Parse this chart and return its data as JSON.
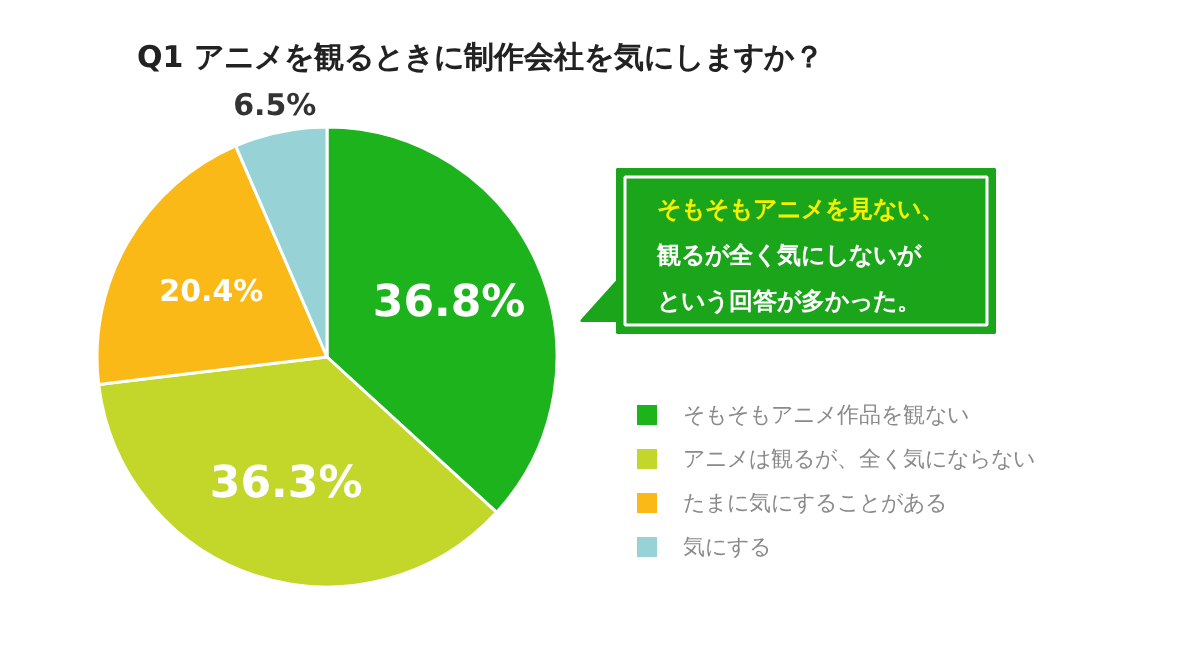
{
  "chart_data": {
    "type": "pie",
    "title": "Q1  アニメを観るときに制作会社を気にしますか？",
    "categories": [
      "そもそもアニメ作品を観ない",
      "アニメは観るが、全く気にならない",
      "たまに気にすることがある",
      "気にする"
    ],
    "values": [
      36.8,
      36.3,
      20.4,
      6.5
    ],
    "colors": [
      "#1db31d",
      "#c3d62a",
      "#fbb917",
      "#97d3d6"
    ],
    "value_labels": [
      "36.8%",
      "36.3%",
      "20.4%",
      "6.5%"
    ],
    "annotations": [
      "そもそもアニメを見ない、",
      "観るが全く気にしないが",
      "という回答が多かった。"
    ],
    "legend": "right"
  }
}
